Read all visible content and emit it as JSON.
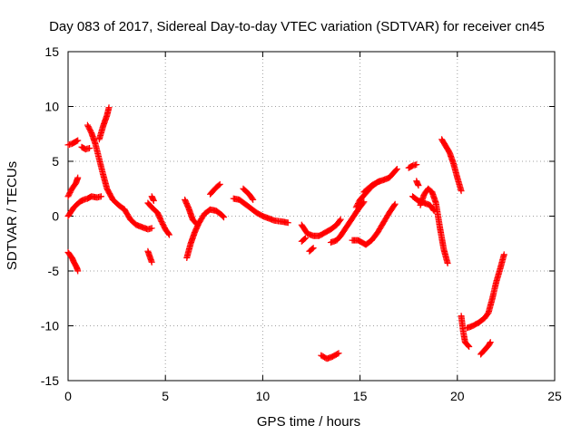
{
  "chart_data": {
    "type": "scatter",
    "title": "Day 083 of 2017, Sidereal Day-to-day VTEC variation (SDTVAR) for receiver cn45",
    "xlabel": "GPS time / hours",
    "ylabel": "SDTVAR / TECUs",
    "xlim": [
      0,
      25
    ],
    "ylim": [
      -15,
      15
    ],
    "xticks": [
      0,
      5,
      10,
      15,
      20,
      25
    ],
    "yticks": [
      -15,
      -10,
      -5,
      0,
      5,
      10,
      15
    ],
    "grid": true,
    "marker": "plus",
    "color": "#ff0000",
    "series": [
      {
        "segments": [
          [
            [
              0.0,
              6.5
            ],
            [
              0.2,
              6.6
            ],
            [
              0.4,
              6.8
            ],
            [
              0.5,
              6.9
            ]
          ],
          [
            [
              0.0,
              -3.3
            ],
            [
              0.2,
              -3.8
            ],
            [
              0.3,
              -4.2
            ],
            [
              0.45,
              -4.7
            ],
            [
              0.5,
              -5.0
            ]
          ],
          [
            [
              0.0,
              1.8
            ],
            [
              0.2,
              2.5
            ],
            [
              0.4,
              3.0
            ],
            [
              0.5,
              3.5
            ]
          ],
          [
            [
              0.0,
              0.0
            ],
            [
              0.3,
              0.8
            ],
            [
              0.6,
              1.3
            ],
            [
              0.8,
              1.5
            ],
            [
              1.0,
              1.6
            ],
            [
              1.2,
              1.8
            ],
            [
              1.5,
              1.7
            ],
            [
              1.7,
              1.8
            ]
          ],
          [
            [
              0.7,
              6.3
            ],
            [
              0.9,
              6.1
            ],
            [
              1.1,
              6.2
            ]
          ],
          [
            [
              1.0,
              8.3
            ],
            [
              1.2,
              7.6
            ],
            [
              1.4,
              6.6
            ],
            [
              1.6,
              5.2
            ],
            [
              1.8,
              3.8
            ],
            [
              2.0,
              2.5
            ],
            [
              2.3,
              1.5
            ],
            [
              2.6,
              1.0
            ],
            [
              2.9,
              0.6
            ]
          ],
          [
            [
              1.6,
              7.0
            ],
            [
              1.8,
              8.2
            ],
            [
              2.0,
              9.2
            ],
            [
              2.1,
              9.9
            ]
          ],
          [
            [
              2.9,
              0.6
            ],
            [
              3.2,
              -0.3
            ],
            [
              3.5,
              -0.8
            ],
            [
              3.8,
              -1.0
            ],
            [
              4.1,
              -1.2
            ],
            [
              4.3,
              -1.1
            ]
          ],
          [
            [
              4.1,
              -3.2
            ],
            [
              4.3,
              -4.2
            ]
          ],
          [
            [
              4.1,
              1.2
            ],
            [
              4.3,
              0.8
            ],
            [
              4.6,
              0.3
            ],
            [
              4.8,
              -0.5
            ],
            [
              5.0,
              -1.2
            ],
            [
              5.2,
              -1.7
            ]
          ],
          [
            [
              4.3,
              1.8
            ],
            [
              4.4,
              1.4
            ]
          ],
          [
            [
              6.0,
              1.5
            ],
            [
              6.2,
              0.7
            ],
            [
              6.4,
              -0.3
            ],
            [
              6.6,
              -0.7
            ]
          ],
          [
            [
              6.1,
              -3.8
            ],
            [
              6.3,
              -2.5
            ],
            [
              6.5,
              -1.5
            ],
            [
              6.7,
              -0.7
            ],
            [
              7.0,
              0.2
            ],
            [
              7.3,
              0.6
            ],
            [
              7.6,
              0.5
            ],
            [
              7.9,
              0.1
            ],
            [
              8.0,
              -0.1
            ]
          ],
          [
            [
              7.3,
              2.0
            ],
            [
              7.6,
              2.6
            ],
            [
              7.8,
              2.9
            ]
          ],
          [
            [
              8.5,
              1.6
            ],
            [
              8.8,
              1.5
            ],
            [
              9.1,
              1.1
            ],
            [
              9.4,
              0.7
            ],
            [
              9.7,
              0.3
            ],
            [
              10.0,
              0.0
            ],
            [
              10.3,
              -0.2
            ],
            [
              10.6,
              -0.4
            ],
            [
              11.0,
              -0.5
            ],
            [
              11.3,
              -0.6
            ]
          ],
          [
            [
              9.0,
              2.5
            ],
            [
              9.3,
              2.0
            ],
            [
              9.5,
              1.5
            ]
          ],
          [
            [
              12.0,
              -0.8
            ],
            [
              12.3,
              -1.6
            ],
            [
              12.6,
              -1.8
            ],
            [
              12.9,
              -1.8
            ],
            [
              13.2,
              -1.5
            ],
            [
              13.5,
              -1.2
            ],
            [
              13.8,
              -0.8
            ],
            [
              14.0,
              -0.3
            ]
          ],
          [
            [
              12.0,
              -2.3
            ],
            [
              12.2,
              -2.0
            ]
          ],
          [
            [
              12.4,
              -3.2
            ],
            [
              12.6,
              -2.9
            ]
          ],
          [
            [
              13.0,
              -12.7
            ],
            [
              13.3,
              -13.0
            ],
            [
              13.6,
              -12.8
            ],
            [
              13.9,
              -12.5
            ]
          ],
          [
            [
              13.5,
              -2.4
            ],
            [
              13.8,
              -2.2
            ],
            [
              14.0,
              -1.8
            ],
            [
              14.3,
              -1.0
            ],
            [
              14.6,
              -0.2
            ],
            [
              14.9,
              0.6
            ],
            [
              15.2,
              1.3
            ]
          ],
          [
            [
              14.6,
              -2.2
            ],
            [
              14.9,
              -2.2
            ],
            [
              15.1,
              -2.4
            ],
            [
              15.3,
              -2.6
            ],
            [
              15.6,
              -2.2
            ],
            [
              15.9,
              -1.5
            ],
            [
              16.2,
              -0.6
            ],
            [
              16.5,
              0.3
            ],
            [
              16.8,
              1.1
            ]
          ],
          [
            [
              14.8,
              0.8
            ],
            [
              15.0,
              1.5
            ],
            [
              15.3,
              2.1
            ],
            [
              15.6,
              2.7
            ],
            [
              15.9,
              3.1
            ],
            [
              16.2,
              3.3
            ],
            [
              16.5,
              3.5
            ],
            [
              16.7,
              3.9
            ],
            [
              16.9,
              4.3
            ]
          ],
          [
            [
              15.2,
              2.2
            ],
            [
              15.6,
              2.8
            ],
            [
              16.0,
              3.2
            ]
          ],
          [
            [
              17.5,
              4.4
            ],
            [
              17.7,
              4.6
            ],
            [
              17.9,
              4.7
            ]
          ],
          [
            [
              17.7,
              1.8
            ],
            [
              18.0,
              1.4
            ],
            [
              18.3,
              1.2
            ],
            [
              18.6,
              1.0
            ],
            [
              18.8,
              0.5
            ]
          ],
          [
            [
              17.9,
              3.2
            ],
            [
              18.0,
              2.8
            ]
          ],
          [
            [
              18.1,
              1.0
            ],
            [
              18.3,
              2.0
            ],
            [
              18.5,
              2.5
            ],
            [
              18.7,
              2.2
            ],
            [
              18.9,
              1.2
            ],
            [
              19.1,
              -1.0
            ],
            [
              19.3,
              -3.0
            ],
            [
              19.5,
              -4.3
            ]
          ],
          [
            [
              19.2,
              7.0
            ],
            [
              19.4,
              6.4
            ],
            [
              19.6,
              5.8
            ],
            [
              19.8,
              4.8
            ],
            [
              20.0,
              3.5
            ],
            [
              20.2,
              2.3
            ]
          ],
          [
            [
              20.2,
              -9.1
            ],
            [
              20.3,
              -10.5
            ],
            [
              20.4,
              -11.5
            ],
            [
              20.6,
              -11.9
            ]
          ],
          [
            [
              20.5,
              -10.2
            ],
            [
              20.8,
              -10.0
            ],
            [
              21.1,
              -9.7
            ],
            [
              21.4,
              -9.3
            ],
            [
              21.6,
              -8.8
            ],
            [
              21.8,
              -7.5
            ],
            [
              22.0,
              -6.0
            ],
            [
              22.2,
              -4.8
            ],
            [
              22.4,
              -3.5
            ]
          ],
          [
            [
              21.2,
              -12.6
            ],
            [
              21.4,
              -12.2
            ],
            [
              21.6,
              -11.8
            ],
            [
              21.7,
              -11.5
            ]
          ]
        ]
      }
    ]
  }
}
